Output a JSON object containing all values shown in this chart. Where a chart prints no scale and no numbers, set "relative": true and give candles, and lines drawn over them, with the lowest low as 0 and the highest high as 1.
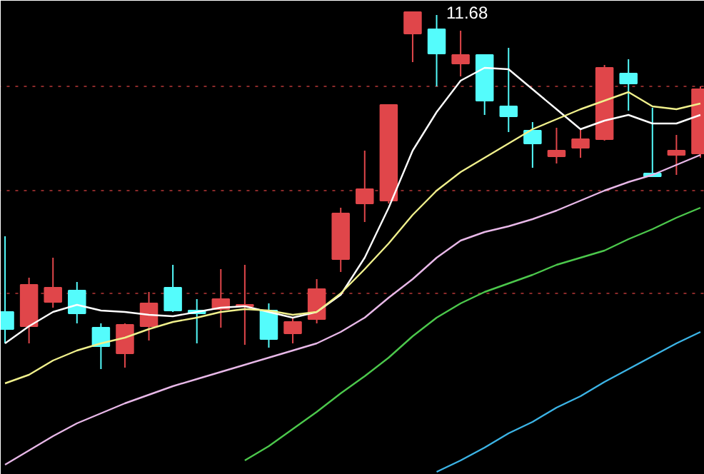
{
  "chart_data": {
    "type": "candlestick",
    "relative": true,
    "categories": [
      null,
      null,
      null,
      null,
      null,
      null,
      null,
      null,
      null,
      null,
      null,
      null,
      null,
      null,
      null,
      null,
      null,
      null,
      null,
      null,
      null,
      null,
      null,
      null,
      null,
      null,
      null,
      null,
      null,
      null
    ],
    "ohlc": [
      [
        0.16,
        0.372,
        0.072,
        0.112
      ],
      [
        0.12,
        0.256,
        0.072,
        0.236
      ],
      [
        0.188,
        0.312,
        0.172,
        0.228
      ],
      [
        0.22,
        0.244,
        0.128,
        0.156
      ],
      [
        0.116,
        0.128,
        0,
        0.064
      ],
      [
        0.044,
        0.128,
        0.004,
        0.124
      ],
      [
        0.12,
        0.216,
        0.08,
        0.184
      ],
      [
        0.228,
        0.292,
        0.16,
        0.164
      ],
      [
        0.164,
        0.196,
        0.072,
        0.156
      ],
      [
        0.168,
        0.28,
        0.116,
        0.196
      ],
      [
        0.176,
        0.292,
        0.068,
        0.18
      ],
      [
        0.164,
        0.184,
        0.06,
        0.084
      ],
      [
        0.1,
        0.144,
        0.072,
        0.132
      ],
      [
        0.14,
        0.252,
        0.128,
        0.224
      ],
      [
        0.308,
        0.452,
        0.272,
        0.436
      ],
      [
        0.464,
        0.612,
        0.412,
        0.504
      ],
      [
        0.472,
        0.74,
        0.464,
        0.74
      ],
      [
        0.94,
        1,
        0.86,
        1
      ],
      [
        0.952,
        0.992,
        0.792,
        0.884
      ],
      [
        0.856,
        0.948,
        0.82,
        0.88
      ],
      [
        0.88,
        0.88,
        0.712,
        0.752
      ],
      [
        0.736,
        0.9,
        0.664,
        0.708
      ],
      [
        0.668,
        0.692,
        0.564,
        0.632
      ],
      [
        0.596,
        0.676,
        0.576,
        0.612
      ],
      [
        0.62,
        0.672,
        0.592,
        0.644
      ],
      [
        0.644,
        0.852,
        0.64,
        0.844
      ],
      [
        0.828,
        0.868,
        0.724,
        0.8
      ],
      [
        0.548,
        0.732,
        0.54,
        0.54
      ],
      [
        0.6,
        0.656,
        0.544,
        0.612
      ],
      [
        0.604,
        0.792,
        0.592,
        0.784
      ]
    ],
    "colors": [
      "#54fcfc",
      "#e0464a",
      "#e0464a",
      "#54fcfc",
      "#54fcfc",
      "#e0464a",
      "#e0464a",
      "#54fcfc",
      "#54fcfc",
      "#e0464a",
      "#e0464a",
      "#54fcfc",
      "#e0464a",
      "#e0464a",
      "#e0464a",
      "#e0464a",
      "#e0464a",
      "#e0464a",
      "#54fcfc",
      "#e0464a",
      "#54fcfc",
      "#54fcfc",
      "#54fcfc",
      "#e0464a",
      "#e0464a",
      "#e0464a",
      "#54fcfc",
      "#54fcfc",
      "#e0464a",
      "#e0464a"
    ],
    "series": [
      {
        "type": "line",
        "color": "#ffffff",
        "values": [
          0.072,
          0.12,
          0.16,
          0.18,
          0.164,
          0.16,
          0.152,
          0.148,
          0.16,
          0.172,
          0.176,
          0.16,
          0.144,
          0.16,
          0.208,
          0.312,
          0.452,
          0.612,
          0.72,
          0.808,
          0.844,
          0.84,
          0.784,
          0.728,
          0.672,
          0.696,
          0.712,
          0.688,
          0.688,
          0.712
        ]
      },
      {
        "type": "line",
        "color": "#f0f08c",
        "values": [
          -0.04,
          -0.016,
          0.024,
          0.052,
          0.072,
          0.088,
          0.112,
          0.132,
          0.144,
          0.16,
          0.168,
          0.164,
          0.152,
          0.16,
          0.212,
          0.28,
          0.352,
          0.432,
          0.5,
          0.552,
          0.592,
          0.632,
          0.672,
          0.7,
          0.728,
          0.752,
          0.776,
          0.736,
          0.728,
          0.744
        ]
      },
      {
        "type": "line",
        "color": "#e8b8e8",
        "values": [
          -0.268,
          -0.228,
          -0.188,
          -0.152,
          -0.124,
          -0.096,
          -0.072,
          -0.048,
          -0.028,
          -0.008,
          0.012,
          0.032,
          0.052,
          0.072,
          0.104,
          0.144,
          0.2,
          0.252,
          0.312,
          0.36,
          0.384,
          0.4,
          0.42,
          0.444,
          0.472,
          0.5,
          0.524,
          0.544,
          0.572,
          0.6
        ]
      },
      {
        "type": "line",
        "color": "#4cc84c",
        "values": [
          null,
          null,
          null,
          null,
          null,
          null,
          null,
          null,
          null,
          null,
          -0.256,
          -0.216,
          -0.168,
          -0.12,
          -0.068,
          -0.02,
          0.032,
          0.092,
          0.144,
          0.184,
          0.216,
          0.24,
          0.264,
          0.292,
          0.312,
          0.332,
          0.364,
          0.392,
          0.424,
          0.452
        ]
      },
      {
        "type": "line",
        "color": "#3cb4e6",
        "values": [
          null,
          null,
          null,
          null,
          null,
          null,
          null,
          null,
          null,
          null,
          null,
          null,
          null,
          null,
          null,
          null,
          null,
          null,
          -0.288,
          -0.256,
          -0.22,
          -0.18,
          -0.148,
          -0.108,
          -0.076,
          -0.036,
          0,
          0.036,
          0.072,
          0.104
        ]
      }
    ],
    "ref_lines": [
      {
        "axis": "y",
        "value": 0.792,
        "color": "#8b2a2a",
        "line_style": "dotted"
      },
      {
        "axis": "y",
        "value": 0.5,
        "color": "#8b2a2a",
        "line_style": "dotted"
      },
      {
        "axis": "y",
        "value": 0.212,
        "color": "#8b2a2a",
        "line_style": "dotted"
      }
    ],
    "annotations": [
      "11.68"
    ],
    "grid": false
  }
}
